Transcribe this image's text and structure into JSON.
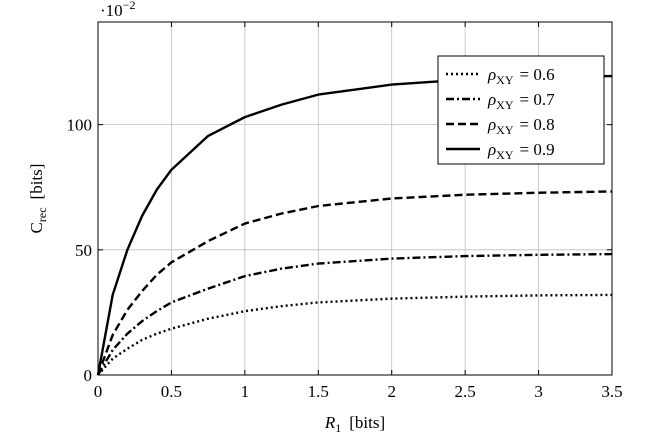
{
  "chart_data": {
    "type": "line",
    "title": "",
    "xlabel": {
      "symbol": "R",
      "sub": "1",
      "unit": "[bits]"
    },
    "ylabel": {
      "symbol": "C",
      "sub": "rec",
      "unit": "[bits]"
    },
    "y_scale_note": {
      "base": "·10",
      "exp": "−2"
    },
    "xlim": [
      0,
      3.5
    ],
    "ylim": [
      0,
      141
    ],
    "xticks": [
      0,
      0.5,
      1,
      1.5,
      2,
      2.5,
      3,
      3.5
    ],
    "xtick_labels": [
      "0",
      "0.5",
      "1",
      "1.5",
      "2",
      "2.5",
      "3",
      "3.5"
    ],
    "yticks": [
      0,
      50,
      100
    ],
    "ytick_labels": [
      "0",
      "50",
      "100"
    ],
    "grid": true,
    "legend_position": "top-right",
    "x": [
      0,
      0.1,
      0.2,
      0.3,
      0.4,
      0.5,
      0.75,
      1,
      1.25,
      1.5,
      2,
      2.5,
      3,
      3.5
    ],
    "series": [
      {
        "name": {
          "symbol": "ρ",
          "sub": "XY",
          "value": "= 0.6"
        },
        "style": "dotted",
        "values": [
          0,
          6.5,
          10.5,
          14,
          16.5,
          18.5,
          22.5,
          25.5,
          27.5,
          29,
          30.5,
          31.3,
          31.8,
          32
        ]
      },
      {
        "name": {
          "symbol": "ρ",
          "sub": "XY",
          "value": "= 0.7"
        },
        "style": "dashdot",
        "values": [
          0,
          10,
          16.5,
          21.5,
          25.5,
          29,
          34.5,
          39.5,
          42.5,
          44.5,
          46.5,
          47.5,
          48,
          48.3
        ]
      },
      {
        "name": {
          "symbol": "ρ",
          "sub": "XY",
          "value": "= 0.8"
        },
        "style": "dashed",
        "values": [
          0,
          16,
          26,
          33.5,
          40,
          45,
          53.5,
          60.5,
          64.5,
          67.5,
          70.5,
          72,
          72.8,
          73.3
        ]
      },
      {
        "name": {
          "symbol": "ρ",
          "sub": "XY",
          "value": "= 0.9"
        },
        "style": "solid",
        "values": [
          0,
          32,
          50,
          63.5,
          74,
          82,
          95.5,
          103,
          108,
          112,
          116,
          118,
          119,
          119.4
        ]
      }
    ]
  }
}
